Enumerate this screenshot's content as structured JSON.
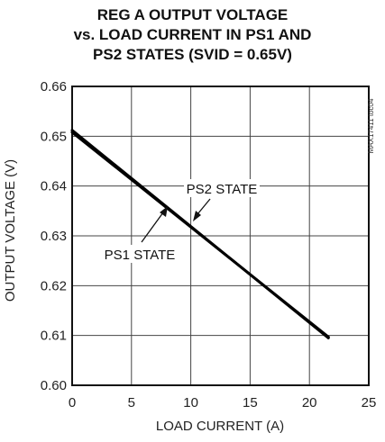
{
  "chart_data": {
    "type": "line",
    "title_lines": [
      "REG A OUTPUT VOLTAGE",
      "vs. LOAD CURRENT IN PS1 AND",
      "PS2 STATES (SVID = 0.65V)"
    ],
    "xlabel": "LOAD CURRENT (A)",
    "ylabel": "OUTPUT VOLTAGE (V)",
    "xlim": [
      0,
      25
    ],
    "ylim": [
      0.6,
      0.66
    ],
    "x_ticks": [
      "0",
      "5",
      "10",
      "15",
      "20",
      "25"
    ],
    "y_ticks": [
      "0.60",
      "0.61",
      "0.62",
      "0.63",
      "0.64",
      "0.65",
      "0.66"
    ],
    "grid": true,
    "figure_code": "MAX17411 toc04",
    "series": [
      {
        "name": "PS1 STATE",
        "x": [
          0,
          21.6
        ],
        "y": [
          0.6512,
          0.6095
        ]
      },
      {
        "name": "PS2 STATE",
        "x": [
          0,
          21.6
        ],
        "y": [
          0.6508,
          0.6097
        ]
      }
    ],
    "annotations": [
      {
        "text": "PS2 STATE",
        "x": 11.2,
        "y": 0.6318
      },
      {
        "text": "PS1 STATE",
        "x": 8.6,
        "y": 0.6343
      }
    ]
  }
}
